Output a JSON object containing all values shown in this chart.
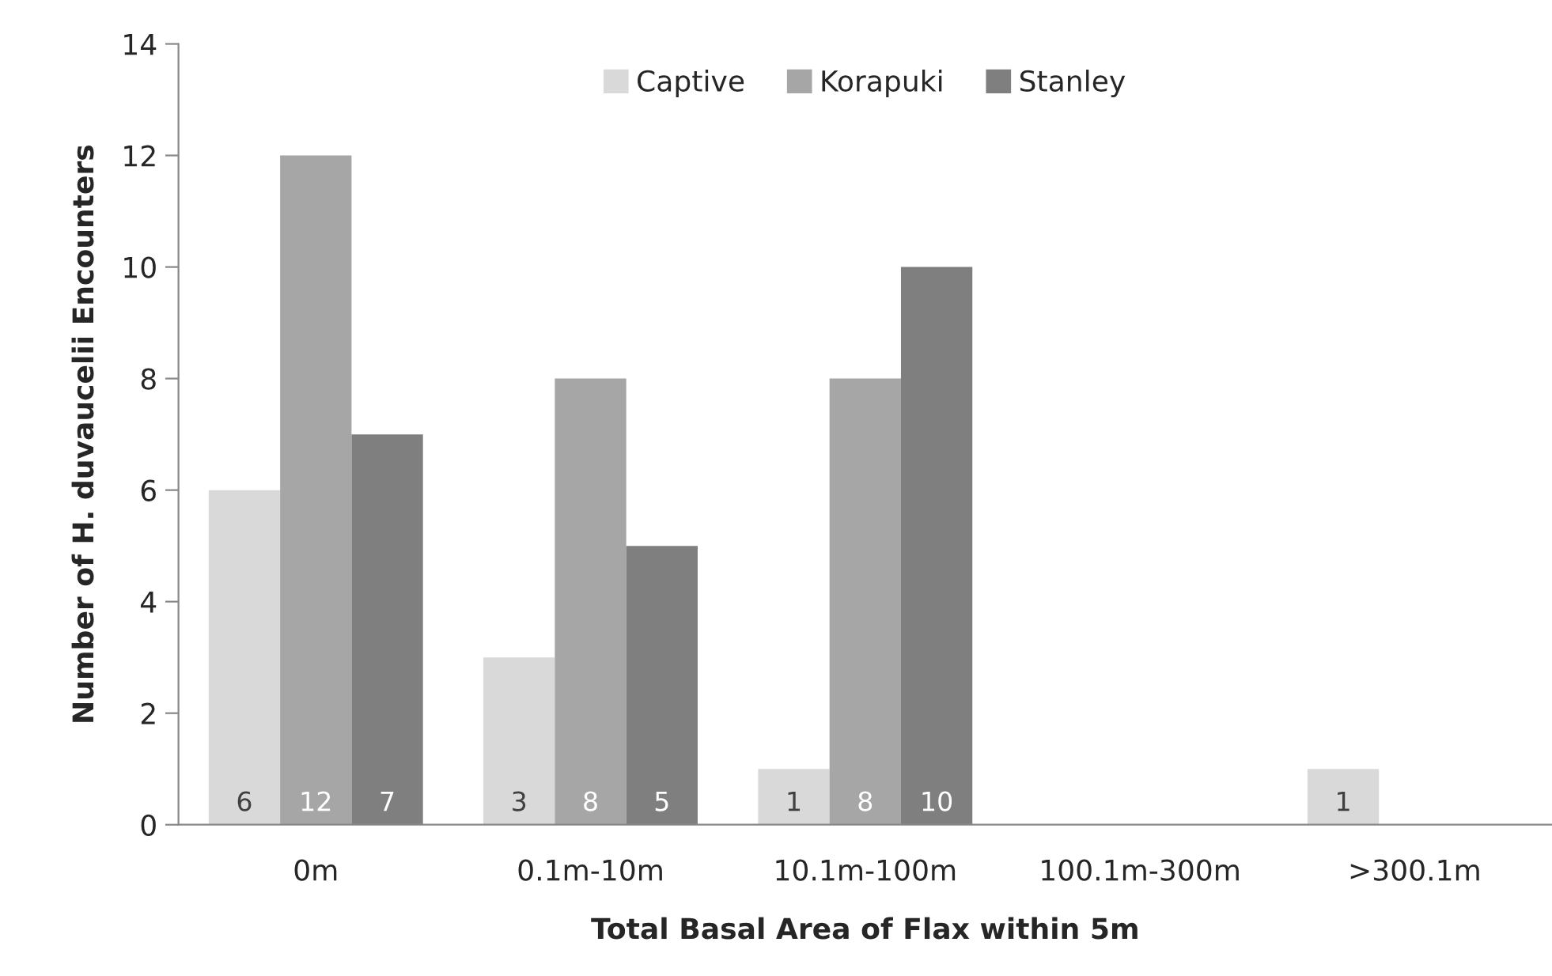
{
  "chart_data": {
    "type": "bar",
    "xlabel": "Total Basal Area of Flax within 5m",
    "ylabel": "Number of H. duvaucelii Encounters",
    "categories": [
      "0m",
      "0.1m-10m",
      "10.1m-100m",
      "100.1m-300m",
      ">300.1m"
    ],
    "series": [
      {
        "name": "Captive",
        "color": "#d9d9d9",
        "values": [
          6,
          3,
          1,
          0,
          1
        ],
        "value_labels": [
          "6",
          "3",
          "1",
          null,
          "1"
        ]
      },
      {
        "name": "Korapuki",
        "color": "#a6a6a6",
        "values": [
          12,
          8,
          8,
          0,
          0
        ],
        "value_labels": [
          "12",
          "8",
          "8",
          null,
          null
        ]
      },
      {
        "name": "Stanley",
        "color": "#7f7f7f",
        "values": [
          7,
          5,
          10,
          0,
          0
        ],
        "value_labels": [
          "7",
          "5",
          "10",
          null,
          null
        ]
      }
    ],
    "ylim": [
      0,
      14
    ],
    "yticks": [
      0,
      2,
      4,
      6,
      8,
      10,
      12,
      14
    ],
    "grid": false,
    "legend": "top"
  }
}
